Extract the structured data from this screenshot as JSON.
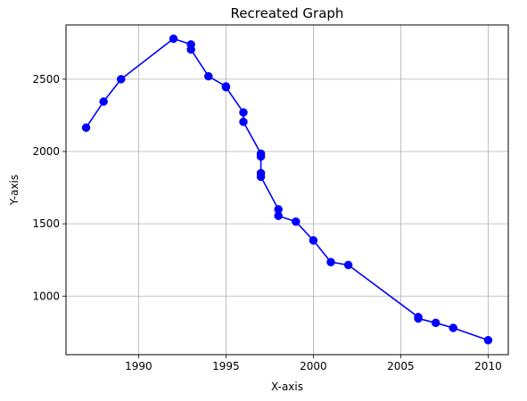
{
  "chart_data": {
    "type": "line",
    "title": "Recreated Graph",
    "xlabel": "X-axis",
    "ylabel": "Y-axis",
    "xlim": [
      1985.85,
      2011.15
    ],
    "ylim": [
      595,
      2875
    ],
    "xticks": [
      1990,
      1995,
      2000,
      2005,
      2010
    ],
    "yticks": [
      1000,
      1500,
      2000,
      2500
    ],
    "grid": true,
    "color": "#0000ff",
    "marker": "circle",
    "series": [
      {
        "x": [
          1987,
          1988,
          1989,
          1992,
          1993,
          1993,
          1994,
          1995,
          1995,
          1996,
          1996,
          1997,
          1997,
          1997,
          1997,
          1998,
          1998,
          1999,
          2000,
          2001,
          2002,
          2006,
          2006,
          2007,
          2008,
          2010
        ],
        "y": [
          2165,
          2345,
          2500,
          2780,
          2740,
          2705,
          2520,
          2450,
          2445,
          2270,
          2205,
          1985,
          1965,
          1850,
          1825,
          1600,
          1555,
          1515,
          1385,
          1235,
          1215,
          855,
          845,
          815,
          780,
          695
        ]
      }
    ]
  }
}
